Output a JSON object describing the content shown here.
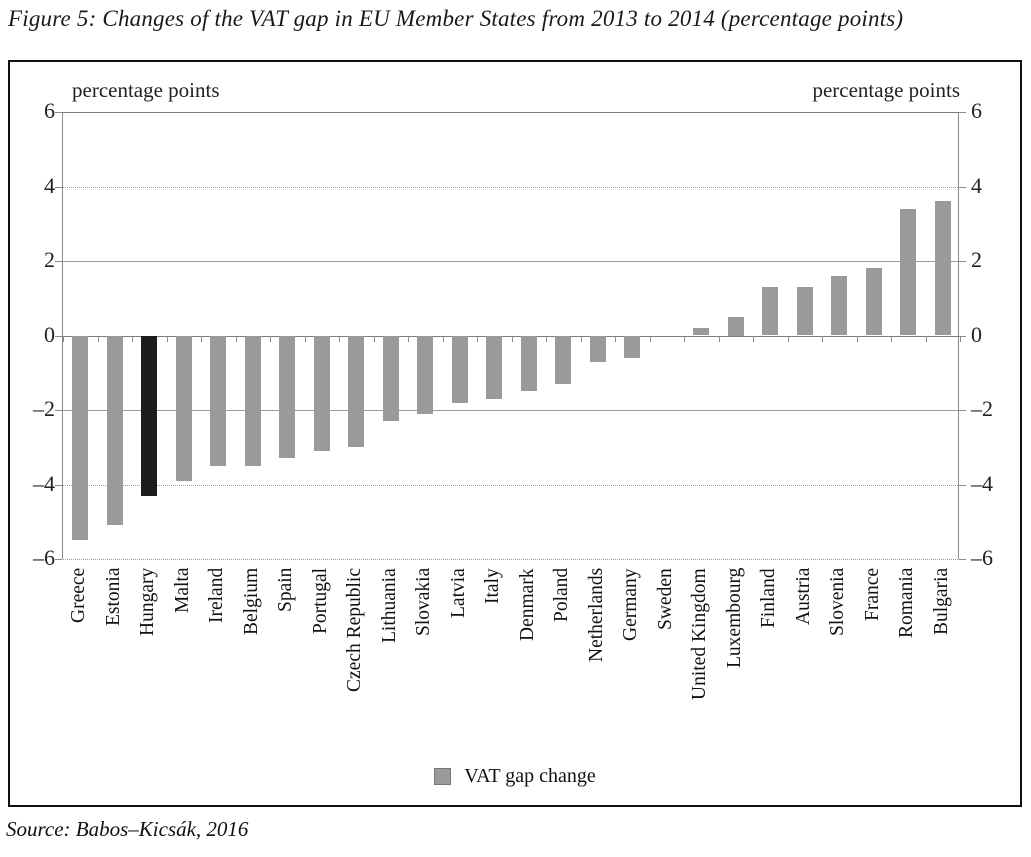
{
  "figure": {
    "title": "Figure 5: Changes of the VAT gap in EU Member States from 2013 to 2014 (percentage points)",
    "source": "Source: Babos–Kicsák, 2016"
  },
  "axis": {
    "left_unit_label": "percentage points",
    "right_unit_label": "percentage points"
  },
  "legend": {
    "label": "VAT gap change",
    "swatch_color": "#9a9a9a"
  },
  "colors": {
    "bar": "#9a9a9a",
    "highlight_bar": "#1c1c1c",
    "grid": "#9a9a9a",
    "axis_line": "#7d7d7d"
  },
  "chart_data": {
    "type": "bar",
    "title": "Changes of the VAT gap in EU Member States from 2013 to 2014",
    "ylabel": "percentage points",
    "ylim": [
      -6,
      6
    ],
    "yticks": [
      6,
      4,
      2,
      0,
      -2,
      -4,
      -6
    ],
    "grid": true,
    "legend_position": "bottom",
    "highlight_category": "Hungary",
    "categories": [
      "Greece",
      "Estonia",
      "Hungary",
      "Malta",
      "Ireland",
      "Belgium",
      "Spain",
      "Portugal",
      "Czech Republic",
      "Lithuania",
      "Slovakia",
      "Latvia",
      "Italy",
      "Denmark",
      "Poland",
      "Netherlands",
      "Germany",
      "Sweden",
      "United Kingdom",
      "Luxembourg",
      "Finland",
      "Austria",
      "Slovenia",
      "France",
      "Romania",
      "Bulgaria"
    ],
    "series": [
      {
        "name": "VAT gap change",
        "values": [
          -5.5,
          -5.1,
          -4.3,
          -3.9,
          -3.5,
          -3.5,
          -3.3,
          -3.1,
          -3.0,
          -2.3,
          -2.1,
          -1.8,
          -1.7,
          -1.5,
          -1.3,
          -0.7,
          -0.6,
          0.0,
          0.2,
          0.5,
          1.3,
          1.3,
          1.6,
          1.8,
          3.4,
          3.6
        ]
      }
    ]
  }
}
